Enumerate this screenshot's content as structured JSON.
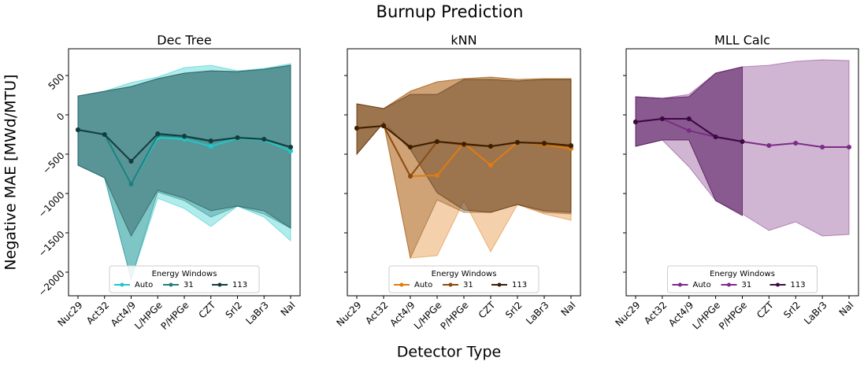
{
  "chart_data": {
    "type": "line",
    "title": "Burnup Prediction",
    "x_label": "Detector Type",
    "y_label": "Negative MAE [MWd/MTU]",
    "legend_title": "Energy Windows",
    "legend": "lower center",
    "categories": [
      "Nuc29",
      "Act32",
      "Act4/9",
      "L/HPGe",
      "P/HPGe",
      "CZT",
      "SrI2",
      "LaBr3",
      "NaI"
    ],
    "ylim": [
      -2300,
      840
    ],
    "yticks": [
      {
        "value": -2000,
        "label": "−2000"
      },
      {
        "value": -1500,
        "label": "−1500"
      },
      {
        "value": -1000,
        "label": "−1000"
      },
      {
        "value": -500,
        "label": "−500"
      },
      0,
      500
    ],
    "panels": [
      {
        "title": "Dec Tree",
        "series": [
          {
            "name": "Auto",
            "color": "#1fc8c8",
            "values": [
              -190,
              -250,
              -880,
              -290,
              -310,
              -400,
              -300,
              -320,
              -460
            ],
            "lower": [
              -640,
              -800,
              -2090,
              -1060,
              -1190,
              -1420,
              -1160,
              -1300,
              -1600
            ],
            "upper": [
              240,
              300,
              410,
              480,
              600,
              630,
              560,
              590,
              650
            ]
          },
          {
            "name": "31",
            "color": "#1f7f80",
            "values": [
              -190,
              -250,
              -880,
              -260,
              -280,
              -340,
              -290,
              -310,
              -410
            ],
            "lower": [
              -640,
              -800,
              -2090,
              -980,
              -1090,
              -1300,
              -1160,
              -1260,
              -1440
            ],
            "upper": [
              240,
              300,
              360,
              460,
              530,
              560,
              550,
              580,
              630
            ]
          },
          {
            "name": "113",
            "color": "#143c3c",
            "values": [
              -190,
              -250,
              -590,
              -240,
              -270,
              -330,
              -290,
              -310,
              -410
            ],
            "lower": [
              -640,
              -800,
              -1540,
              -960,
              -1060,
              -1220,
              -1160,
              -1220,
              -1440
            ],
            "upper": [
              240,
              300,
              360,
              460,
              530,
              560,
              550,
              580,
              630
            ]
          }
        ]
      },
      {
        "title": "kNN",
        "series": [
          {
            "name": "Auto",
            "color": "#e07c12",
            "values": [
              -170,
              -140,
              -780,
              -770,
              -360,
              -640,
              -350,
              -380,
              -430
            ],
            "lower": [
              -500,
              -100,
              -1820,
              -1790,
              -1090,
              -1740,
              -1140,
              -1260,
              -1340
            ],
            "upper": [
              140,
              80,
              300,
              420,
              460,
              480,
              450,
              460,
              460
            ]
          },
          {
            "name": "31",
            "color": "#8a4d10",
            "values": [
              -170,
              -140,
              -780,
              -340,
              -380,
              -400,
              -350,
              -370,
              -400
            ],
            "lower": [
              -500,
              -100,
              -1820,
              -1080,
              -1240,
              -1240,
              -1140,
              -1240,
              -1260
            ],
            "upper": [
              140,
              80,
              300,
              420,
              460,
              480,
              450,
              460,
              460
            ]
          },
          {
            "name": "113",
            "color": "#3c1e02",
            "values": [
              -170,
              -140,
              -410,
              -340,
              -370,
              -400,
              -350,
              -360,
              -390
            ],
            "lower": [
              -500,
              -100,
              -440,
              -990,
              -1210,
              -1240,
              -1140,
              -1220,
              -1240
            ],
            "upper": [
              140,
              80,
              260,
              260,
              450,
              450,
              430,
              450,
              450
            ]
          }
        ]
      },
      {
        "title": "MLL Calc",
        "series": [
          {
            "name": "Auto",
            "color": "#7b2d85",
            "values": [
              -90,
              -50,
              -200,
              -280,
              -340,
              -390,
              -360,
              -410,
              -410
            ],
            "lower": [
              -400,
              -320,
              -660,
              -1090,
              -1260,
              -1470,
              -1360,
              -1540,
              -1520
            ],
            "upper": [
              230,
              210,
              260,
              530,
              610,
              630,
              680,
              700,
              690
            ]
          },
          {
            "name": "31",
            "color": "#7b2d85",
            "values": [
              -90,
              -50,
              -50,
              -280,
              -340,
              null,
              null,
              null,
              null
            ],
            "lower": [
              -400,
              -320,
              -320,
              -1090,
              -1280,
              null,
              null,
              null,
              null
            ],
            "upper": [
              230,
              210,
              230,
              530,
              610,
              null,
              null,
              null,
              null
            ]
          },
          {
            "name": "113",
            "color": "#3c0a42",
            "values": [
              -90,
              -50,
              -50,
              -280,
              -340,
              null,
              null,
              null,
              null
            ],
            "lower": [
              -400,
              -320,
              -320,
              -1090,
              -1280,
              null,
              null,
              null,
              null
            ],
            "upper": [
              230,
              210,
              230,
              530,
              610,
              null,
              null,
              null,
              null
            ]
          }
        ]
      }
    ]
  }
}
